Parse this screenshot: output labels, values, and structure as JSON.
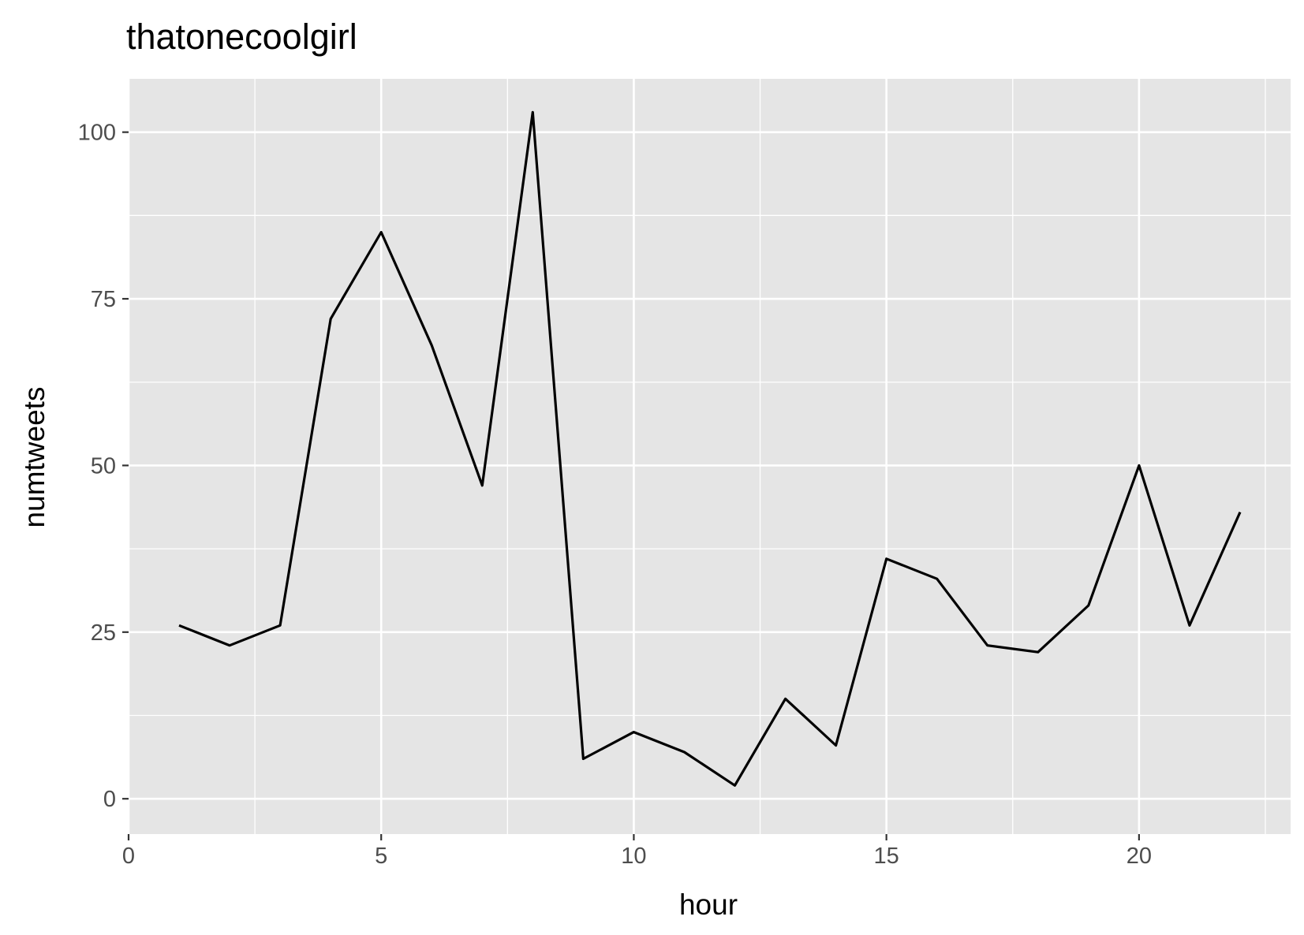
{
  "chart_data": {
    "type": "line",
    "title": "thatonecoolgirl",
    "xlabel": "hour",
    "ylabel": "numtweets",
    "xlim": [
      0,
      23
    ],
    "ylim": [
      0,
      108
    ],
    "x_ticks": [
      0,
      5,
      10,
      15,
      20
    ],
    "y_ticks": [
      0,
      25,
      50,
      75,
      100
    ],
    "grid": true,
    "background": "#e5e5e5",
    "grid_color": "#ffffff",
    "line_color": "#000000",
    "series": [
      {
        "x": [
          1,
          2,
          3,
          4,
          5,
          6,
          7,
          8,
          9,
          10,
          11,
          12,
          13,
          14,
          15,
          16,
          17,
          18,
          19,
          20,
          21,
          22
        ],
        "y": [
          26,
          23,
          26,
          72,
          85,
          68,
          47,
          103,
          6,
          10,
          7,
          2,
          15,
          8,
          36,
          33,
          23,
          22,
          29,
          50,
          26,
          43
        ]
      }
    ]
  }
}
